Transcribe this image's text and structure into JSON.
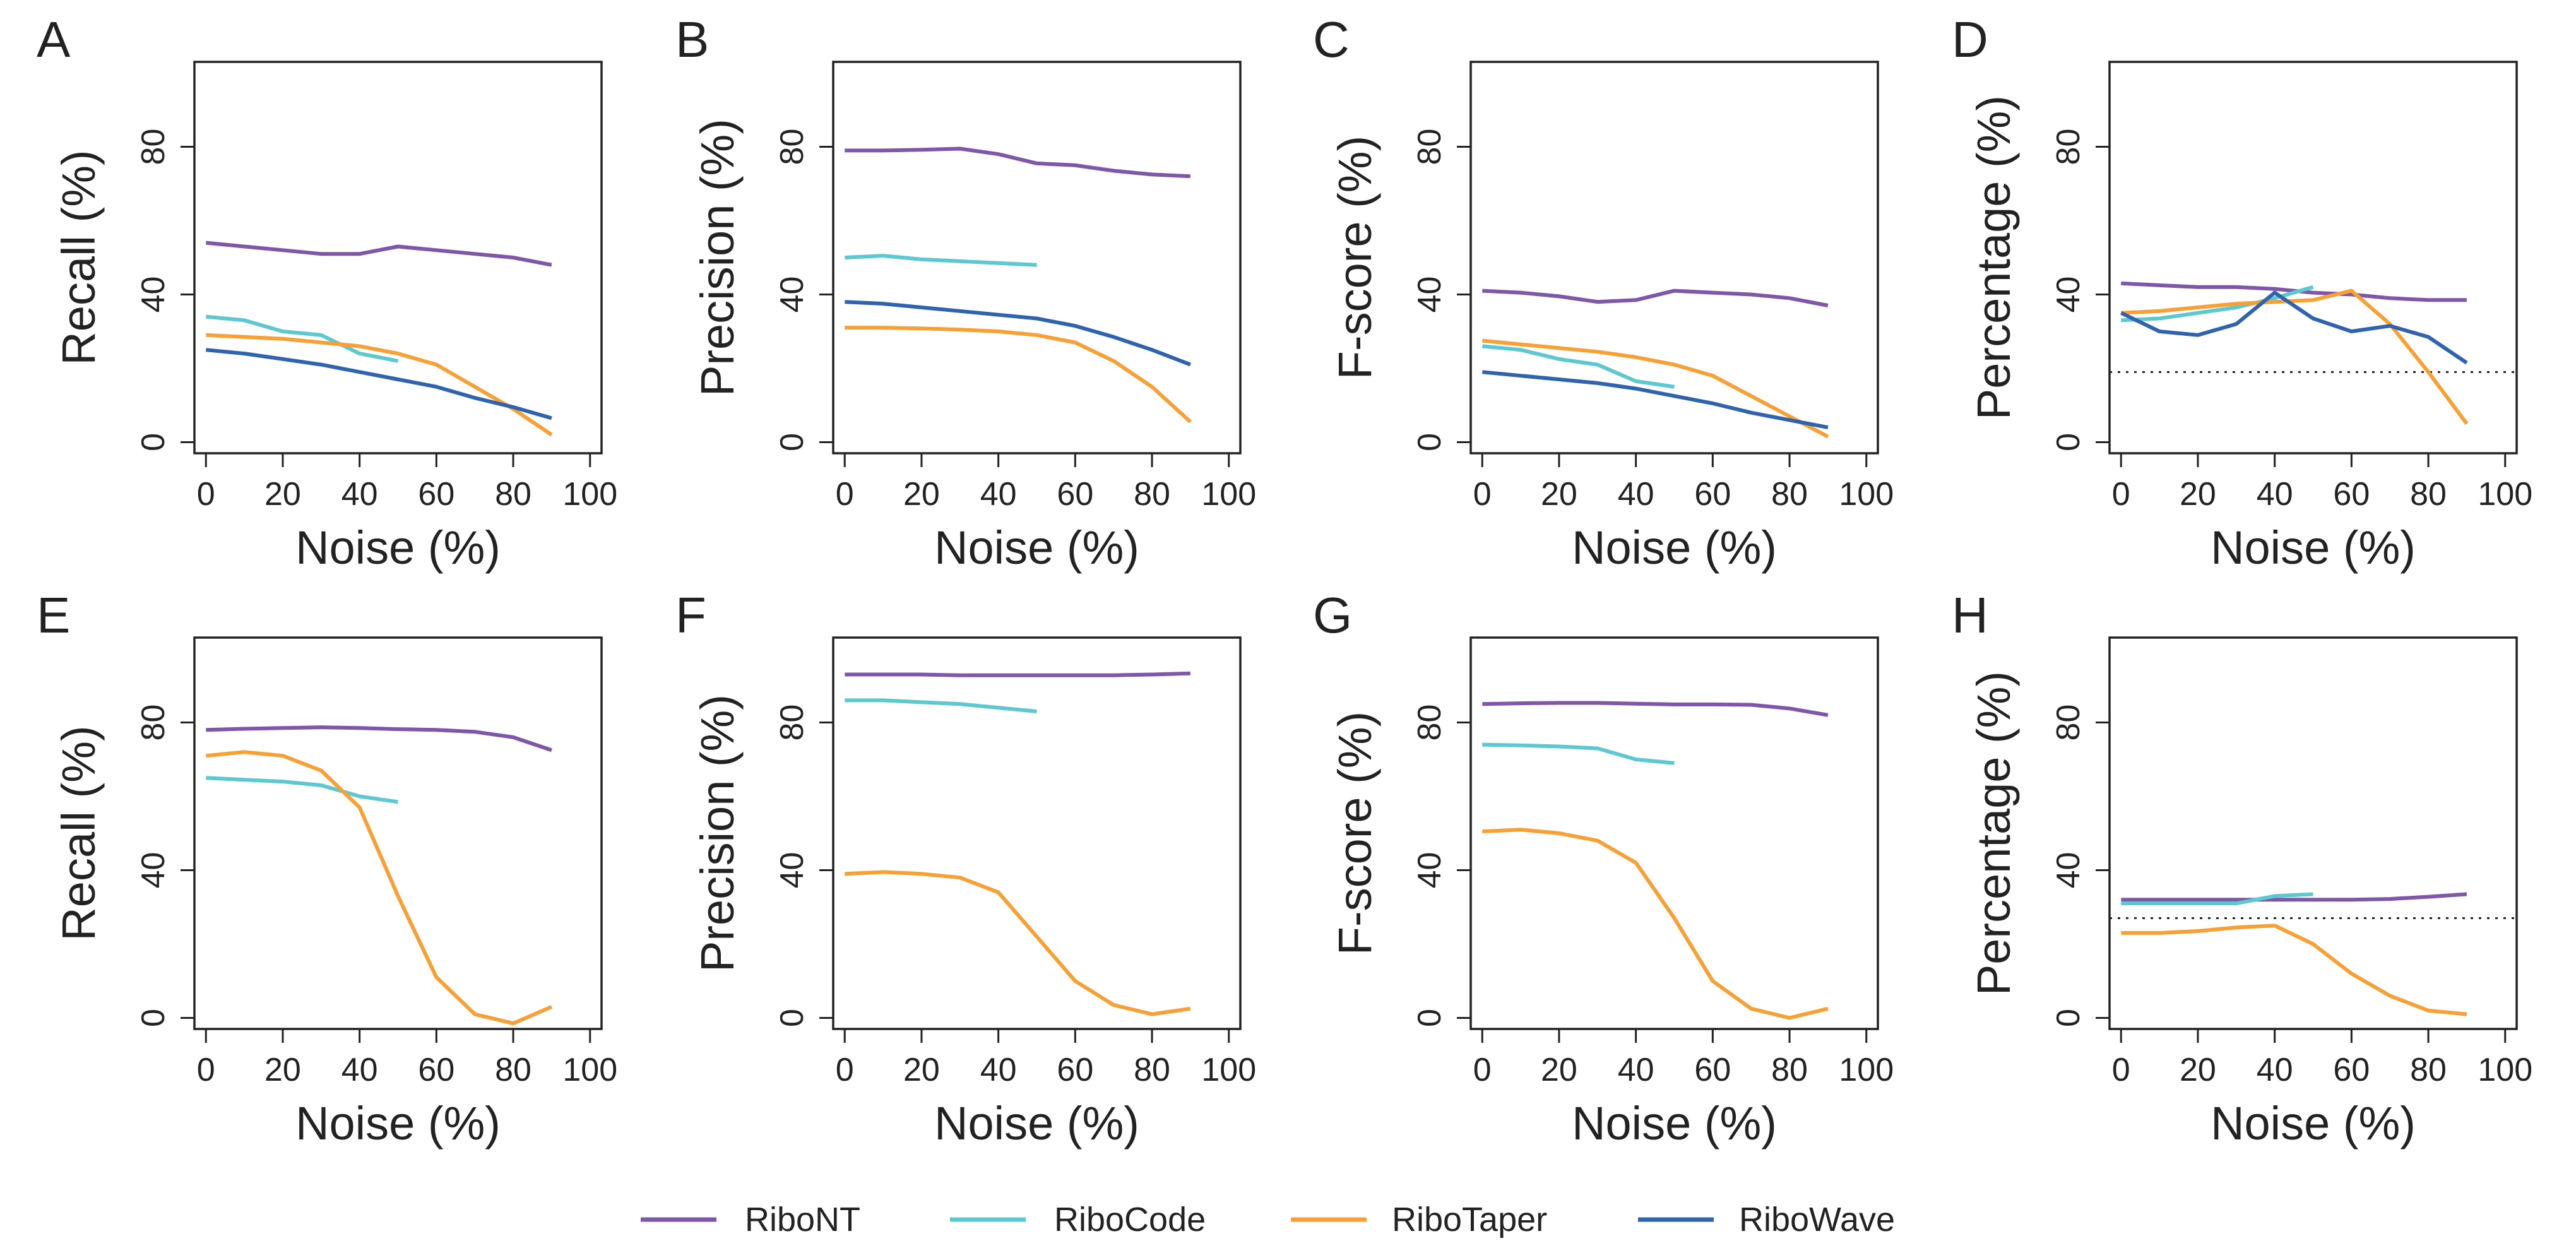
{
  "figure": {
    "legend": [
      {
        "name": "RiboNT",
        "color": "#7e57a8"
      },
      {
        "name": "RiboCode",
        "color": "#5ec8d0"
      },
      {
        "name": "RiboTaper",
        "color": "#f7a035"
      },
      {
        "name": "RiboWave",
        "color": "#2f63ad"
      }
    ]
  },
  "chart_data": [
    {
      "panel": "A",
      "type": "line",
      "xlabel": "Noise (%)",
      "ylabel": "Recall (%)",
      "xlim": [
        -3,
        103
      ],
      "ylim": [
        -3,
        103
      ],
      "xticks": [
        0,
        20,
        40,
        60,
        80,
        100
      ],
      "yticks": [
        0,
        40,
        80
      ],
      "series": [
        {
          "name": "RiboNT",
          "color": "#7e57a8",
          "x": [
            0,
            10,
            20,
            30,
            40,
            50,
            60,
            70,
            80,
            90
          ],
          "y": [
            54,
            53,
            52,
            51,
            51,
            53,
            52,
            51,
            50,
            48
          ]
        },
        {
          "name": "RiboCode",
          "color": "#5ec8d0",
          "x": [
            0,
            10,
            20,
            30,
            40,
            50
          ],
          "y": [
            34,
            33,
            30,
            29,
            24,
            22
          ]
        },
        {
          "name": "RiboTaper",
          "color": "#f7a035",
          "x": [
            0,
            10,
            20,
            30,
            40,
            50,
            60,
            70,
            80,
            90
          ],
          "y": [
            29,
            28.5,
            28,
            27,
            26,
            24,
            21,
            15,
            9,
            2
          ]
        },
        {
          "name": "RiboWave",
          "color": "#2f63ad",
          "x": [
            0,
            10,
            20,
            30,
            40,
            50,
            60,
            70,
            80,
            90
          ],
          "y": [
            25,
            24,
            22.5,
            21,
            19,
            17,
            15,
            12,
            9.5,
            6.5
          ]
        }
      ]
    },
    {
      "panel": "B",
      "type": "line",
      "xlabel": "Noise (%)",
      "ylabel": "Precision (%)",
      "xlim": [
        -3,
        103
      ],
      "ylim": [
        -3,
        103
      ],
      "xticks": [
        0,
        20,
        40,
        60,
        80,
        100
      ],
      "yticks": [
        0,
        40,
        80
      ],
      "series": [
        {
          "name": "RiboNT",
          "color": "#7e57a8",
          "x": [
            0,
            10,
            20,
            30,
            40,
            50,
            60,
            70,
            80,
            90
          ],
          "y": [
            79,
            79,
            79.2,
            79.5,
            78,
            75.5,
            75,
            73.5,
            72.5,
            72
          ]
        },
        {
          "name": "RiboCode",
          "color": "#5ec8d0",
          "x": [
            0,
            10,
            20,
            30,
            40,
            50
          ],
          "y": [
            50,
            50.5,
            49.5,
            49,
            48.5,
            48
          ]
        },
        {
          "name": "RiboTaper",
          "color": "#f7a035",
          "x": [
            0,
            10,
            20,
            30,
            40,
            50,
            60,
            70,
            80,
            90
          ],
          "y": [
            31,
            31,
            30.8,
            30.5,
            30,
            29,
            27,
            22,
            15,
            5.5
          ]
        },
        {
          "name": "RiboWave",
          "color": "#2f63ad",
          "x": [
            0,
            10,
            20,
            30,
            40,
            50,
            60,
            70,
            80,
            90
          ],
          "y": [
            38,
            37.5,
            36.5,
            35.5,
            34.5,
            33.5,
            31.5,
            28.5,
            25,
            21
          ]
        }
      ]
    },
    {
      "panel": "C",
      "type": "line",
      "xlabel": "Noise (%)",
      "ylabel": "F-score (%)",
      "xlim": [
        -3,
        103
      ],
      "ylim": [
        -3,
        103
      ],
      "xticks": [
        0,
        20,
        40,
        60,
        80,
        100
      ],
      "yticks": [
        0,
        40,
        80
      ],
      "series": [
        {
          "name": "RiboNT",
          "color": "#7e57a8",
          "x": [
            0,
            10,
            20,
            30,
            40,
            50,
            60,
            70,
            80,
            90
          ],
          "y": [
            41,
            40.5,
            39.5,
            38,
            38.5,
            41,
            40.5,
            40,
            39,
            37
          ]
        },
        {
          "name": "RiboCode",
          "color": "#5ec8d0",
          "x": [
            0,
            10,
            20,
            30,
            40,
            50
          ],
          "y": [
            26,
            25,
            22.5,
            21,
            16.5,
            15
          ]
        },
        {
          "name": "RiboTaper",
          "color": "#f7a035",
          "x": [
            0,
            10,
            20,
            30,
            40,
            50,
            60,
            70,
            80,
            90
          ],
          "y": [
            27.5,
            26.5,
            25.5,
            24.5,
            23,
            21,
            18,
            12.5,
            7,
            1.5
          ]
        },
        {
          "name": "RiboWave",
          "color": "#2f63ad",
          "x": [
            0,
            10,
            20,
            30,
            40,
            50,
            60,
            70,
            80,
            90
          ],
          "y": [
            19,
            18,
            17,
            16,
            14.5,
            12.5,
            10.5,
            8,
            6,
            4
          ]
        }
      ]
    },
    {
      "panel": "D",
      "type": "line",
      "xlabel": "Noise (%)",
      "ylabel": "Percentage (%)",
      "xlim": [
        -3,
        103
      ],
      "ylim": [
        -3,
        103
      ],
      "xticks": [
        0,
        20,
        40,
        60,
        80,
        100
      ],
      "yticks": [
        0,
        40,
        80
      ],
      "hline": 19,
      "series": [
        {
          "name": "RiboNT",
          "color": "#7e57a8",
          "x": [
            0,
            10,
            20,
            30,
            40,
            50,
            60,
            70,
            80,
            90
          ],
          "y": [
            43,
            42.5,
            42,
            42,
            41.5,
            40.5,
            40,
            39,
            38.5,
            38.5
          ]
        },
        {
          "name": "RiboCode",
          "color": "#5ec8d0",
          "x": [
            0,
            10,
            20,
            30,
            40,
            50
          ],
          "y": [
            33,
            33.5,
            35,
            36.5,
            39,
            42
          ]
        },
        {
          "name": "RiboTaper",
          "color": "#f7a035",
          "x": [
            0,
            10,
            20,
            30,
            40,
            50,
            60,
            70,
            80,
            90
          ],
          "y": [
            35,
            35.5,
            36.5,
            37.5,
            38,
            38.5,
            41,
            32,
            19,
            5
          ]
        },
        {
          "name": "RiboWave",
          "color": "#2f63ad",
          "x": [
            0,
            10,
            20,
            30,
            40,
            50,
            60,
            70,
            80,
            90
          ],
          "y": [
            35,
            30,
            29,
            32,
            40.5,
            33.5,
            30,
            31.5,
            28.5,
            21.5
          ]
        }
      ]
    },
    {
      "panel": "E",
      "type": "line",
      "xlabel": "Noise (%)",
      "ylabel": "Recall (%)",
      "xlim": [
        -3,
        103
      ],
      "ylim": [
        -3,
        103
      ],
      "xticks": [
        0,
        20,
        40,
        60,
        80,
        100
      ],
      "yticks": [
        0,
        40,
        80
      ],
      "series": [
        {
          "name": "RiboNT",
          "color": "#7e57a8",
          "x": [
            0,
            10,
            20,
            30,
            40,
            50,
            60,
            70,
            80,
            90
          ],
          "y": [
            78,
            78.3,
            78.5,
            78.7,
            78.5,
            78.2,
            78,
            77.5,
            76,
            72.5
          ]
        },
        {
          "name": "RiboCode",
          "color": "#5ec8d0",
          "x": [
            0,
            10,
            20,
            30,
            40,
            50
          ],
          "y": [
            65,
            64.5,
            64,
            63,
            60,
            58.5
          ]
        },
        {
          "name": "RiboTaper",
          "color": "#f7a035",
          "x": [
            0,
            10,
            20,
            30,
            40,
            50,
            60,
            70,
            80,
            90
          ],
          "y": [
            71,
            72,
            71,
            67,
            57,
            33,
            11,
            1,
            -1.5,
            3
          ]
        }
      ]
    },
    {
      "panel": "F",
      "type": "line",
      "xlabel": "Noise (%)",
      "ylabel": "Precision (%)",
      "xlim": [
        -3,
        103
      ],
      "ylim": [
        -3,
        103
      ],
      "xticks": [
        0,
        20,
        40,
        60,
        80,
        100
      ],
      "yticks": [
        0,
        40,
        80
      ],
      "series": [
        {
          "name": "RiboNT",
          "color": "#7e57a8",
          "x": [
            0,
            10,
            20,
            30,
            40,
            50,
            60,
            70,
            80,
            90
          ],
          "y": [
            93,
            93,
            93,
            92.8,
            92.8,
            92.8,
            92.8,
            92.8,
            93,
            93.3
          ]
        },
        {
          "name": "RiboCode",
          "color": "#5ec8d0",
          "x": [
            0,
            10,
            20,
            30,
            40,
            50
          ],
          "y": [
            86,
            86,
            85.5,
            85,
            84,
            83
          ]
        },
        {
          "name": "RiboTaper",
          "color": "#f7a035",
          "x": [
            0,
            10,
            20,
            30,
            40,
            50,
            60,
            70,
            80,
            90
          ],
          "y": [
            39,
            39.5,
            39,
            38,
            34,
            22,
            10,
            3.5,
            1,
            2.5
          ]
        }
      ]
    },
    {
      "panel": "G",
      "type": "line",
      "xlabel": "Noise (%)",
      "ylabel": "F-score (%)",
      "xlim": [
        -3,
        103
      ],
      "ylim": [
        -3,
        103
      ],
      "xticks": [
        0,
        20,
        40,
        60,
        80,
        100
      ],
      "yticks": [
        0,
        40,
        80
      ],
      "series": [
        {
          "name": "RiboNT",
          "color": "#7e57a8",
          "x": [
            0,
            10,
            20,
            30,
            40,
            50,
            60,
            70,
            80,
            90
          ],
          "y": [
            85,
            85.2,
            85.3,
            85.3,
            85.1,
            84.9,
            84.9,
            84.8,
            83.8,
            82
          ]
        },
        {
          "name": "RiboCode",
          "color": "#5ec8d0",
          "x": [
            0,
            10,
            20,
            30,
            40,
            50
          ],
          "y": [
            74,
            73.8,
            73.5,
            73,
            70,
            69
          ]
        },
        {
          "name": "RiboTaper",
          "color": "#f7a035",
          "x": [
            0,
            10,
            20,
            30,
            40,
            50,
            60,
            70,
            80,
            90
          ],
          "y": [
            50.5,
            51,
            50,
            48,
            42,
            27,
            10,
            2.5,
            0,
            2.5
          ]
        }
      ]
    },
    {
      "panel": "H",
      "type": "line",
      "xlabel": "Noise (%)",
      "ylabel": "Percentage (%)",
      "xlim": [
        -3,
        103
      ],
      "ylim": [
        -3,
        103
      ],
      "xticks": [
        0,
        20,
        40,
        60,
        80,
        100
      ],
      "yticks": [
        0,
        40,
        80
      ],
      "hline": 27,
      "series": [
        {
          "name": "RiboNT",
          "color": "#7e57a8",
          "x": [
            0,
            10,
            20,
            30,
            40,
            50,
            60,
            70,
            80,
            90
          ],
          "y": [
            32,
            32,
            32,
            32,
            32,
            32,
            32,
            32.2,
            32.8,
            33.5
          ]
        },
        {
          "name": "RiboCode",
          "color": "#5ec8d0",
          "x": [
            0,
            10,
            20,
            30,
            40,
            50
          ],
          "y": [
            31,
            31,
            31,
            31,
            33,
            33.5
          ]
        },
        {
          "name": "RiboTaper",
          "color": "#f7a035",
          "x": [
            0,
            10,
            20,
            30,
            40,
            50,
            60,
            70,
            80,
            90
          ],
          "y": [
            23,
            23,
            23.5,
            24.5,
            25,
            20,
            12,
            6,
            2,
            1
          ]
        }
      ]
    }
  ]
}
